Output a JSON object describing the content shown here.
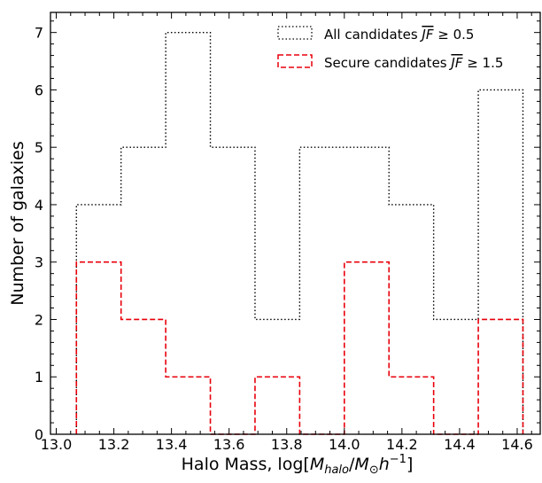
{
  "chart_data": {
    "type": "histogram",
    "xlabel": "Halo Mass, log[M_halo/M_⊙h^-1]",
    "ylabel": "Number of galaxies",
    "xlim": [
      12.98,
      14.68
    ],
    "ylim": [
      0,
      7.35
    ],
    "xticks": [
      13.0,
      13.2,
      13.4,
      13.6,
      13.8,
      14.0,
      14.2,
      14.4,
      14.6
    ],
    "xtick_labels": [
      "13.0",
      "13.2",
      "13.4",
      "13.6",
      "13.8",
      "14.0",
      "14.2",
      "14.4",
      "14.6"
    ],
    "yticks": [
      0,
      1,
      2,
      3,
      4,
      5,
      6,
      7
    ],
    "ytick_labels": [
      "0",
      "1",
      "2",
      "3",
      "4",
      "5",
      "6",
      "7"
    ],
    "bin_edges": [
      13.07,
      13.225,
      13.38,
      13.535,
      13.69,
      13.845,
      14.0,
      14.155,
      14.31,
      14.465,
      14.62
    ],
    "series": [
      {
        "name": "All candidates JF ≥ 0.5",
        "counts": [
          4,
          5,
          7,
          5,
          2,
          5,
          5,
          4,
          2,
          6
        ],
        "color": "#000000",
        "style": "dotted"
      },
      {
        "name": "Secure candidates JF ≥ 1.5",
        "counts": [
          3,
          2,
          1,
          0,
          1,
          0,
          3,
          1,
          0,
          2
        ],
        "color": "#e8000b",
        "style": "dashed"
      }
    ],
    "legend_position": "top-right",
    "grid": false
  }
}
